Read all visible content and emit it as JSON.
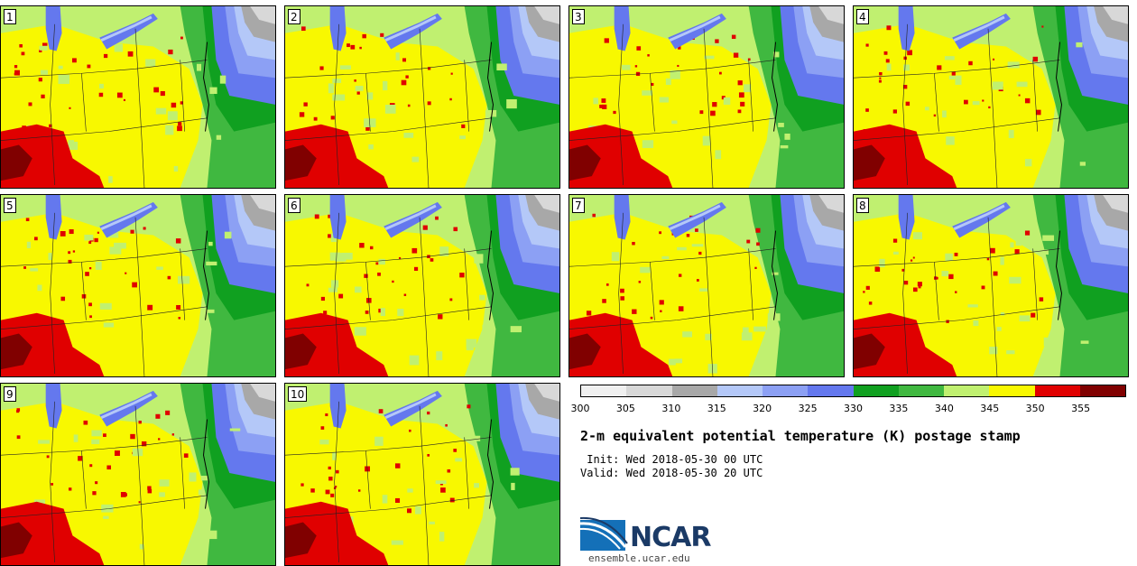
{
  "panels": [
    {
      "label": "1"
    },
    {
      "label": "2"
    },
    {
      "label": "3"
    },
    {
      "label": "4"
    },
    {
      "label": "5"
    },
    {
      "label": "6"
    },
    {
      "label": "7"
    },
    {
      "label": "8"
    },
    {
      "label": "9"
    },
    {
      "label": "10"
    }
  ],
  "colorbar": {
    "colors": [
      "#f0f0f0",
      "#d8d8d8",
      "#a8a8a8",
      "#b4c8f8",
      "#8ca0f4",
      "#6478ee",
      "#10a020",
      "#40b840",
      "#c0f070",
      "#f8f800",
      "#e00000",
      "#800000"
    ],
    "ticks": [
      "300",
      "305",
      "310",
      "315",
      "320",
      "325",
      "330",
      "335",
      "340",
      "345",
      "350",
      "355"
    ]
  },
  "title": "2-m equivalent potential temperature (K) postage stamp",
  "init": " Init: Wed 2018-05-30 00 UTC",
  "valid": "Valid: Wed 2018-05-30 20 UTC",
  "logo": {
    "name": "NCAR",
    "site": "ensemble.ucar.edu"
  }
}
